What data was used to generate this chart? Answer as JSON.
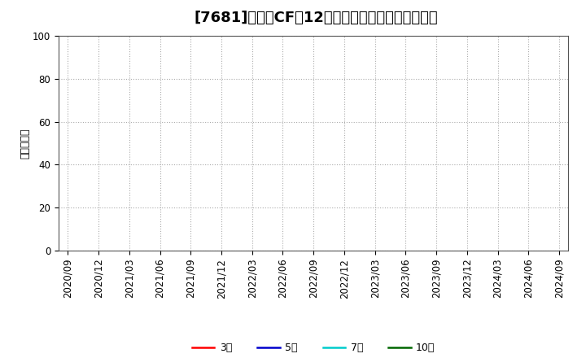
{
  "title": "[7681]　営業CFだ12か月移動合計の平均値の推移",
  "ylabel": "（百万円）",
  "ylim": [
    0,
    100
  ],
  "yticks": [
    0,
    20,
    40,
    60,
    80,
    100
  ],
  "xtick_labels": [
    "2020/09",
    "2020/12",
    "2021/03",
    "2021/06",
    "2021/09",
    "2021/12",
    "2022/03",
    "2022/06",
    "2022/09",
    "2022/12",
    "2023/03",
    "2023/06",
    "2023/09",
    "2023/12",
    "2024/03",
    "2024/06",
    "2024/09"
  ],
  "legend_entries": [
    {
      "label": "3年",
      "color": "#ff0000",
      "linewidth": 1.8
    },
    {
      "label": "5年",
      "color": "#0000cc",
      "linewidth": 1.8
    },
    {
      "label": "7年",
      "color": "#00cccc",
      "linewidth": 1.8
    },
    {
      "label": "10年",
      "color": "#006600",
      "linewidth": 1.8
    }
  ],
  "background_color": "#ffffff",
  "grid_color": "#aaaaaa",
  "title_fontsize": 13,
  "ylabel_fontsize": 9,
  "tick_fontsize": 8.5,
  "legend_fontsize": 9
}
